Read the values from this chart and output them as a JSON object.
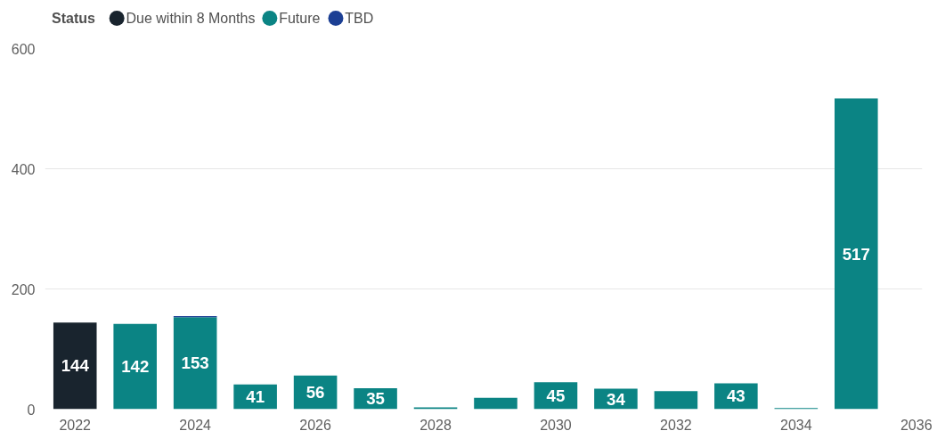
{
  "chart_data": {
    "type": "bar",
    "stacked": true,
    "legend_title": "Status",
    "legend": "top left",
    "grid": "y",
    "x": [
      2022,
      2023,
      2024,
      2025,
      2026,
      2027,
      2028,
      2029,
      2030,
      2031,
      2032,
      2033,
      2034,
      2035
    ],
    "xlim": [
      2021.5,
      2036.1
    ],
    "xticks": [
      2022,
      2024,
      2026,
      2028,
      2030,
      2032,
      2034,
      2036
    ],
    "ylim": [
      0,
      600
    ],
    "yticks": [
      0,
      200,
      400,
      600
    ],
    "series": [
      {
        "name": "Due within 8 Months",
        "color": "#19242e",
        "values": [
          144,
          null,
          null,
          null,
          null,
          null,
          null,
          null,
          null,
          null,
          null,
          null,
          null,
          null
        ],
        "value_labels": [
          "144",
          null,
          null,
          null,
          null,
          null,
          null,
          null,
          null,
          null,
          null,
          null,
          null,
          null
        ]
      },
      {
        "name": "Future",
        "color": "#0b8484",
        "values": [
          null,
          142,
          153,
          41,
          56,
          35,
          3,
          19,
          45,
          34,
          30,
          43,
          2,
          517
        ],
        "value_labels": [
          null,
          "142",
          "153",
          "41",
          "56",
          "35",
          null,
          null,
          "45",
          "34",
          null,
          "43",
          null,
          "517"
        ]
      },
      {
        "name": "TBD",
        "color": "#1c3f94",
        "values": [
          null,
          null,
          2,
          null,
          null,
          null,
          null,
          null,
          null,
          null,
          null,
          null,
          null,
          null
        ],
        "value_labels": [
          null,
          null,
          null,
          null,
          null,
          null,
          null,
          null,
          null,
          null,
          null,
          null,
          null,
          null
        ]
      }
    ]
  }
}
